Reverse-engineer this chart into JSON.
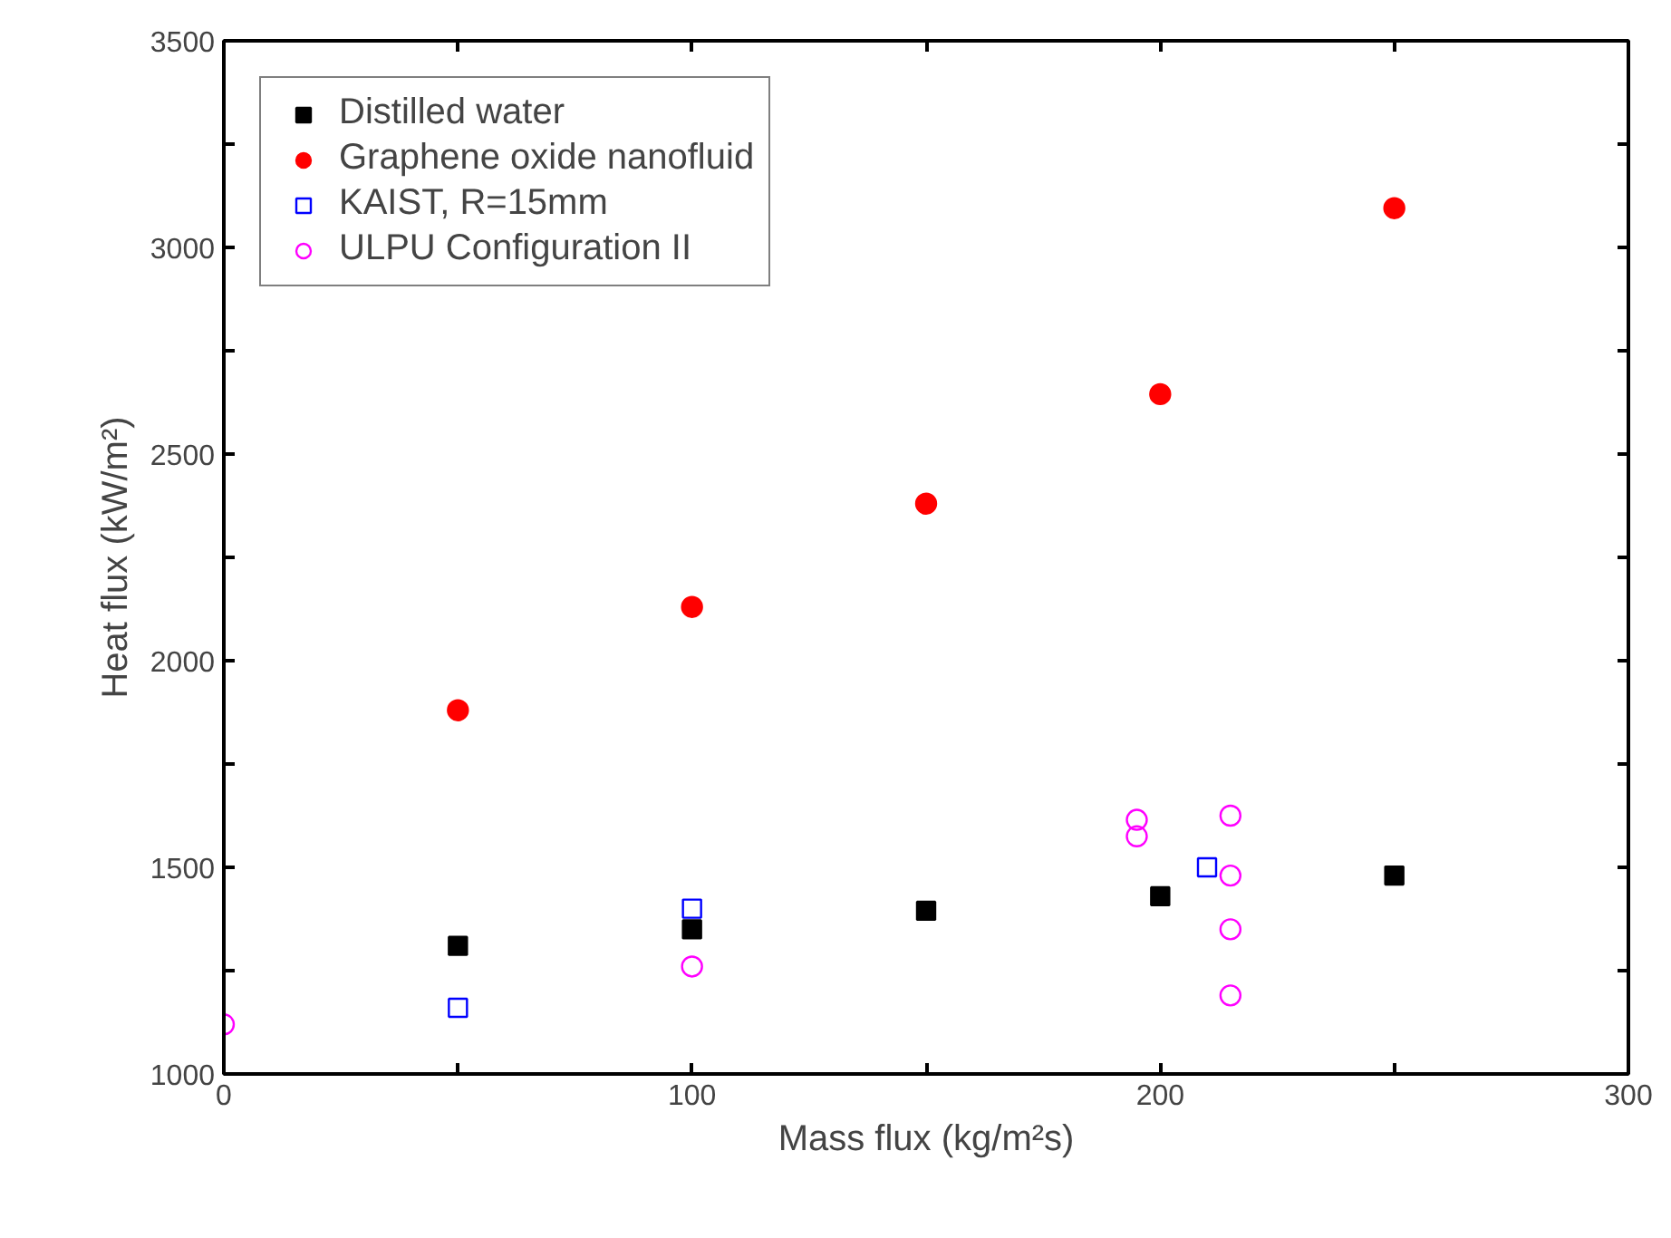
{
  "chart_data": {
    "type": "scatter",
    "xlabel": "Mass flux (kg/m²s)",
    "ylabel": "Heat flux (kW/m²)",
    "xlim": [
      0,
      300
    ],
    "ylim": [
      1000,
      3500
    ],
    "xticks": [
      0,
      {
        "value": 50,
        "label": null
      },
      100,
      {
        "value": 150,
        "label": null
      },
      200,
      {
        "value": 250,
        "label": null
      },
      300
    ],
    "yticks": [
      1000,
      {
        "value": 1250,
        "label": null
      },
      1500,
      {
        "value": 1750,
        "label": null
      },
      2000,
      {
        "value": 2250,
        "label": null
      },
      2500,
      {
        "value": 2750,
        "label": null
      },
      3000,
      {
        "value": 3250,
        "label": null
      },
      3500
    ],
    "grid": false,
    "legend": "top left",
    "series": [
      {
        "name": "Distilled water",
        "color": "#000000",
        "marker": "square",
        "x": [
          50,
          100,
          150,
          200,
          250
        ],
        "values": [
          1310,
          1350,
          1395,
          1430,
          1480
        ]
      },
      {
        "name": "Graphene oxide nanofluid",
        "color": "#ff0000",
        "marker": "circle",
        "x": [
          50,
          100,
          150,
          200,
          250
        ],
        "values": [
          1880,
          2130,
          2380,
          2645,
          3095
        ]
      },
      {
        "name": "KAIST, R=15mm",
        "color": "#0000ff",
        "marker": "square",
        "x": [
          50,
          100,
          210
        ],
        "values": [
          1160,
          1400,
          1500
        ]
      },
      {
        "name": "ULPU Configuration II",
        "color": "#ff00ff",
        "marker": "circle",
        "x": [
          0,
          100,
          195,
          195,
          215,
          215,
          215,
          215
        ],
        "values": [
          1120,
          1260,
          1615,
          1575,
          1625,
          1480,
          1350,
          1190
        ]
      }
    ]
  }
}
